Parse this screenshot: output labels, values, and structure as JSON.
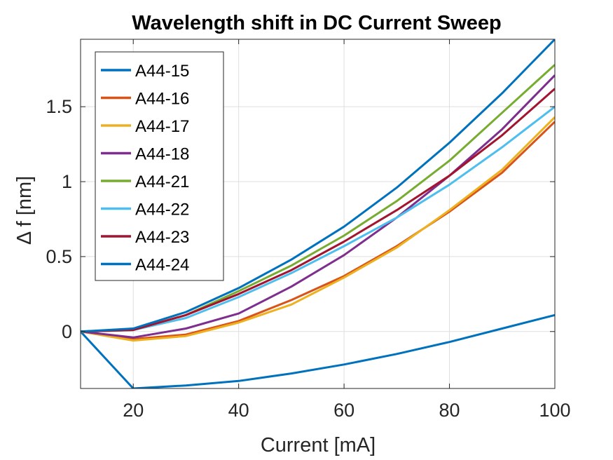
{
  "chart_data": {
    "type": "line",
    "title": "Wavelength shift in DC Current Sweep",
    "xlabel": "Current [mA]",
    "ylabel": "Δ f [nm]",
    "xlim": [
      10,
      100
    ],
    "ylim": [
      -0.38,
      1.95
    ],
    "xticks": [
      20,
      40,
      60,
      80,
      100
    ],
    "yticks": [
      0,
      0.5,
      1,
      1.5
    ],
    "xtick_labels": [
      "20",
      "40",
      "60",
      "80",
      "100"
    ],
    "ytick_labels": [
      "0",
      "0.5",
      "1",
      "1.5"
    ],
    "grid": true,
    "legend_position": "top-left",
    "x": [
      10,
      20,
      30,
      40,
      50,
      60,
      70,
      80,
      90,
      100
    ],
    "series": [
      {
        "name": "A44-15",
        "color": "#0072BD",
        "values": [
          0,
          -0.38,
          -0.36,
          -0.33,
          -0.28,
          -0.22,
          -0.15,
          -0.07,
          0.02,
          0.11
        ]
      },
      {
        "name": "A44-16",
        "color": "#D95319",
        "values": [
          0,
          -0.05,
          -0.02,
          0.07,
          0.21,
          0.37,
          0.57,
          0.8,
          1.06,
          1.4
        ]
      },
      {
        "name": "A44-17",
        "color": "#EDB120",
        "values": [
          0,
          -0.06,
          -0.03,
          0.06,
          0.18,
          0.36,
          0.56,
          0.81,
          1.08,
          1.43
        ]
      },
      {
        "name": "A44-18",
        "color": "#7E2F8E",
        "values": [
          0,
          -0.04,
          0.02,
          0.12,
          0.3,
          0.51,
          0.76,
          1.04,
          1.35,
          1.71
        ]
      },
      {
        "name": "A44-21",
        "color": "#77AC30",
        "values": [
          0,
          0.01,
          0.11,
          0.27,
          0.44,
          0.64,
          0.87,
          1.14,
          1.46,
          1.78
        ]
      },
      {
        "name": "A44-22",
        "color": "#4DBEEE",
        "values": [
          0,
          0.01,
          0.09,
          0.23,
          0.39,
          0.57,
          0.76,
          0.98,
          1.23,
          1.5
        ]
      },
      {
        "name": "A44-23",
        "color": "#A2142F",
        "values": [
          0,
          0.01,
          0.11,
          0.25,
          0.41,
          0.6,
          0.81,
          1.04,
          1.31,
          1.62
        ]
      },
      {
        "name": "A44-24",
        "color": "#0072BD",
        "values": [
          0,
          0.02,
          0.13,
          0.29,
          0.48,
          0.7,
          0.96,
          1.26,
          1.59,
          1.95
        ]
      }
    ]
  }
}
